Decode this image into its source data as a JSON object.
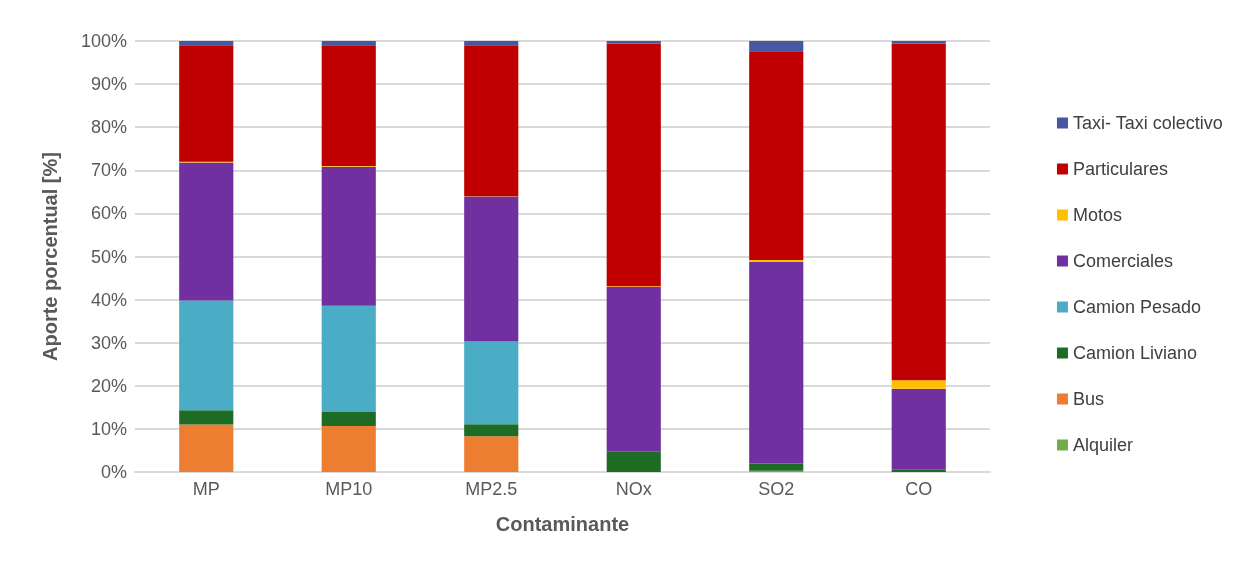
{
  "chart_data": {
    "type": "bar",
    "stacked": true,
    "xlabel": "Contaminante",
    "ylabel": "Aporte porcentual [%]",
    "categories": [
      "MP",
      "MP10",
      "MP2.5",
      "NOx",
      "SO2",
      "CO"
    ],
    "ylim": [
      0,
      100
    ],
    "yticks": [
      {
        "value": 0,
        "label": "0%"
      },
      {
        "value": 10,
        "label": "10%"
      },
      {
        "value": 20,
        "label": "20%"
      },
      {
        "value": 30,
        "label": "30%"
      },
      {
        "value": 40,
        "label": "40%"
      },
      {
        "value": 50,
        "label": "50%"
      },
      {
        "value": 60,
        "label": "60%"
      },
      {
        "value": 70,
        "label": "70%"
      },
      {
        "value": 80,
        "label": "80%"
      },
      {
        "value": 90,
        "label": "90%"
      },
      {
        "value": 100,
        "label": "100%"
      }
    ],
    "grid": "y",
    "legend": "right",
    "series": [
      {
        "name": "Alquiler",
        "color": "#70ad47",
        "values": [
          0,
          0,
          0,
          0,
          0.3,
          0
        ]
      },
      {
        "name": "Bus",
        "color": "#ed7d31",
        "values": [
          11,
          10.7,
          8.3,
          0,
          0,
          0
        ]
      },
      {
        "name": "Camion Liviano",
        "color": "#1e6b24",
        "values": [
          3.3,
          3.2,
          2.8,
          4.7,
          1.7,
          0.5
        ]
      },
      {
        "name": "Camion Pesado",
        "color": "#4bacc6",
        "values": [
          25.5,
          24.7,
          19.2,
          0,
          0,
          0
        ]
      },
      {
        "name": "Comerciales",
        "color": "#7030a0",
        "values": [
          32,
          32.2,
          33.6,
          38.2,
          46.7,
          18.8
        ]
      },
      {
        "name": "Motos",
        "color": "#ffc000",
        "values": [
          0.2,
          0.2,
          0.1,
          0.2,
          0.5,
          2
        ]
      },
      {
        "name": "Particulares",
        "color": "#c00000",
        "values": [
          27,
          28,
          35,
          56.3,
          48.4,
          78.1
        ]
      },
      {
        "name": "Taxi- Taxi colectivo",
        "color": "#4658a0",
        "values": [
          1,
          1,
          1,
          0.6,
          2.4,
          0.6
        ]
      }
    ]
  }
}
